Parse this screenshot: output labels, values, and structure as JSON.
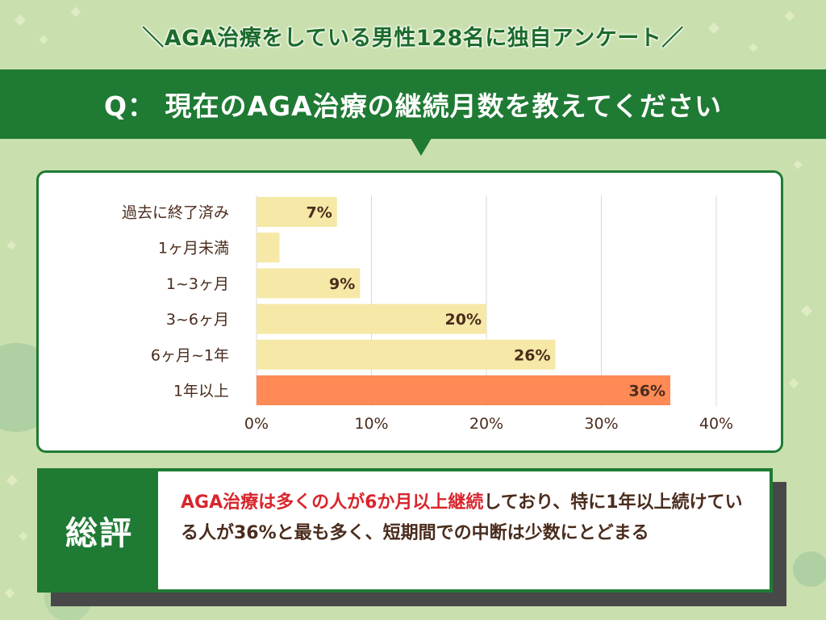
{
  "headline": "＼AGA治療をしている男性128名に独自アンケート／",
  "question": "Q： 現在のAGA治療の継続月数を教えてください",
  "colors": {
    "green": "#1f7a34",
    "bar": "#f6e8a6",
    "highlight_bar": "#ff8a55",
    "highlight_text": "#d8262d",
    "text": "#4a2c1d"
  },
  "chart_data": {
    "type": "bar",
    "orientation": "horizontal",
    "categories": [
      "過去に終了済み",
      "1ヶ月未満",
      "1~3ヶ月",
      "3~6ヶ月",
      "6ヶ月~1年",
      "1年以上"
    ],
    "values": [
      7,
      2,
      9,
      20,
      26,
      36
    ],
    "value_labels": [
      "7%",
      "",
      "9%",
      "20%",
      "26%",
      "36%"
    ],
    "highlight_index": 5,
    "xlim": [
      0,
      40
    ],
    "x_ticks": [
      "0%",
      "10%",
      "20%",
      "30%",
      "40%"
    ],
    "grid": true
  },
  "summary": {
    "label": "総評",
    "highlight": "AGA治療は多くの人が6か月以上継続",
    "rest": "しており、特に1年以上続けている人が36%と最も多く、短期間での中断は少数にとどまる"
  }
}
